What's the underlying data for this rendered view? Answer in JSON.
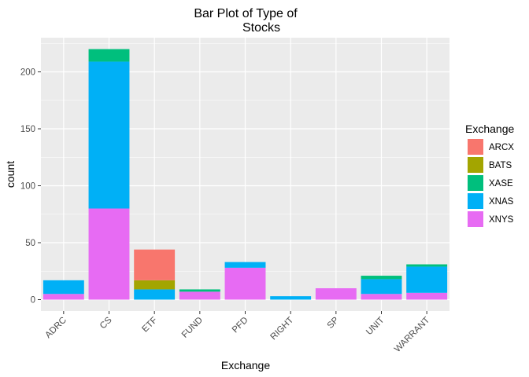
{
  "chart_data": {
    "type": "bar",
    "stacked": true,
    "title_lines": [
      "Bar Plot of Type of",
      "Stocks"
    ],
    "xlabel": "Exchange",
    "ylabel": "count",
    "categories": [
      "ADRC",
      "CS",
      "ETF",
      "FUND",
      "PFD",
      "RIGHT",
      "SP",
      "UNIT",
      "WARRANT"
    ],
    "ylim": [
      -10,
      230
    ],
    "yticks": [
      0,
      50,
      100,
      150,
      200
    ],
    "grid": true,
    "legend_position": "right",
    "legend_title": "Exchange",
    "series": [
      {
        "name": "ARCX",
        "color": "#F8766D",
        "values": [
          0,
          0,
          27,
          0,
          0,
          0,
          0,
          0,
          0
        ]
      },
      {
        "name": "BATS",
        "color": "#A3A500",
        "values": [
          0,
          0,
          8,
          0,
          0,
          0,
          0,
          0,
          0
        ]
      },
      {
        "name": "XASE",
        "color": "#00BF7D",
        "values": [
          0,
          11,
          0,
          2,
          0,
          0,
          0,
          3,
          2
        ]
      },
      {
        "name": "XNAS",
        "color": "#00B0F6",
        "values": [
          12,
          129,
          9,
          0,
          5,
          3,
          0,
          13,
          23
        ]
      },
      {
        "name": "XNYS",
        "color": "#E76BF3",
        "values": [
          5,
          80,
          0,
          7,
          28,
          0,
          10,
          5,
          6
        ]
      }
    ]
  }
}
